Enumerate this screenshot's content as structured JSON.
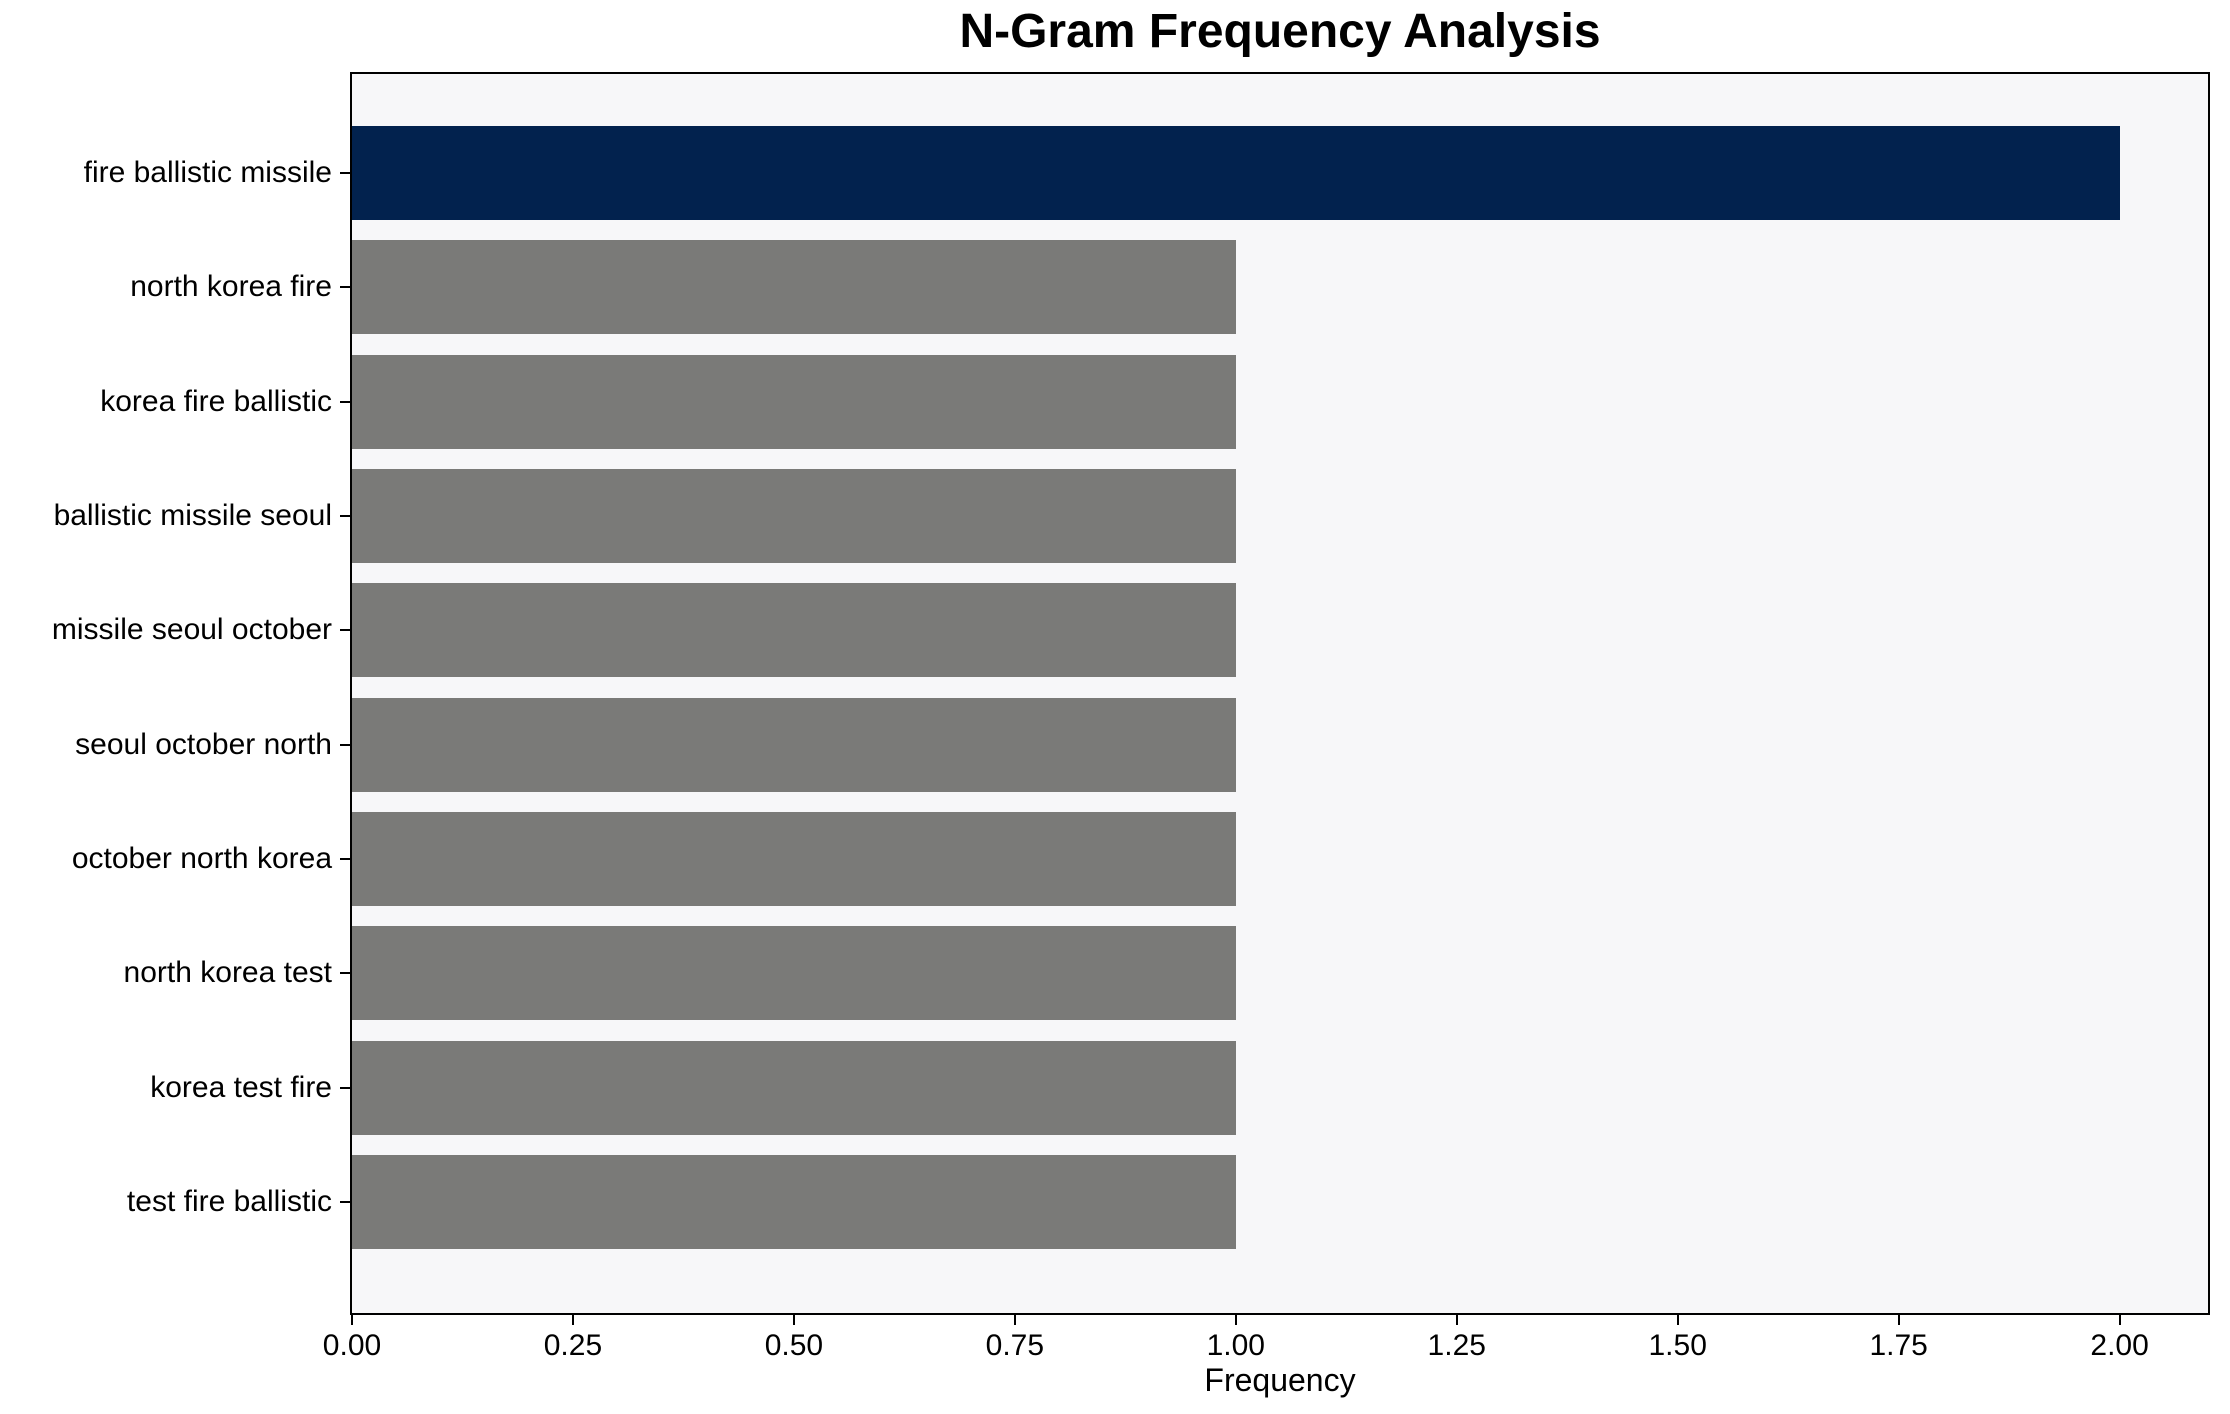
{
  "chart_data": {
    "type": "bar",
    "orientation": "horizontal",
    "title": "N-Gram Frequency Analysis",
    "xlabel": "Frequency",
    "ylabel": "",
    "categories": [
      "fire ballistic missile",
      "north korea fire",
      "korea fire ballistic",
      "ballistic missile seoul",
      "missile seoul october",
      "seoul october north",
      "october north korea",
      "north korea test",
      "korea test fire",
      "test fire ballistic"
    ],
    "values": [
      2,
      1,
      1,
      1,
      1,
      1,
      1,
      1,
      1,
      1
    ],
    "xlim": [
      0,
      2.1
    ],
    "xticks": [
      0,
      0.25,
      0.5,
      0.75,
      1.0,
      1.25,
      1.5,
      1.75,
      2.0
    ],
    "xtick_labels": [
      "0.00",
      "0.25",
      "0.50",
      "0.75",
      "1.00",
      "1.25",
      "1.50",
      "1.75",
      "2.00"
    ],
    "grid": false,
    "legend": "none",
    "highlight_index": 0,
    "colors": {
      "highlight_bar": "#02224e",
      "bar": "#7a7a78",
      "plot_bg": "#f7f7f9",
      "figure_bg": "#ffffff",
      "spine": "#000000",
      "text": "#000000"
    }
  }
}
